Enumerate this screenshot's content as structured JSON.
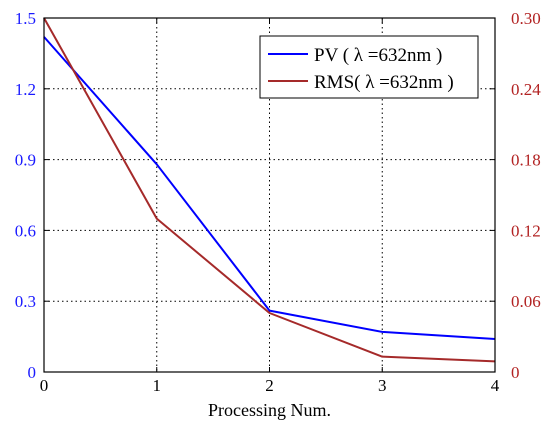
{
  "chart_data": {
    "type": "line",
    "title": "",
    "xlabel": "Processing Num.",
    "ylabel_left": "",
    "ylabel_right": "",
    "x": [
      0,
      1,
      2,
      3,
      4
    ],
    "x_ticks": [
      "0",
      "1",
      "2",
      "3",
      "4"
    ],
    "xlim": [
      0,
      4
    ],
    "ylim_left": [
      0,
      1.5
    ],
    "ylim_right": [
      0,
      0.3
    ],
    "y_ticks_left": [
      "0",
      "0.3",
      "0.6",
      "0.9",
      "1.2",
      "1.5"
    ],
    "y_ticks_right": [
      "0",
      "0.06",
      "0.12",
      "0.18",
      "0.24",
      "0.30"
    ],
    "grid": true,
    "legend_position": "top-right",
    "series": [
      {
        "name": "PV   ( λ =632nm )",
        "axis": "left",
        "color": "#0000ff",
        "values": [
          1.42,
          0.88,
          0.26,
          0.17,
          0.14
        ]
      },
      {
        "name": "RMS( λ =632nm )",
        "axis": "right",
        "color": "#a52a2a",
        "values": [
          0.3,
          0.13,
          0.05,
          0.013,
          0.009
        ]
      }
    ],
    "colors": {
      "left_axis": "#1a1aff",
      "right_axis": "#b22222"
    }
  }
}
